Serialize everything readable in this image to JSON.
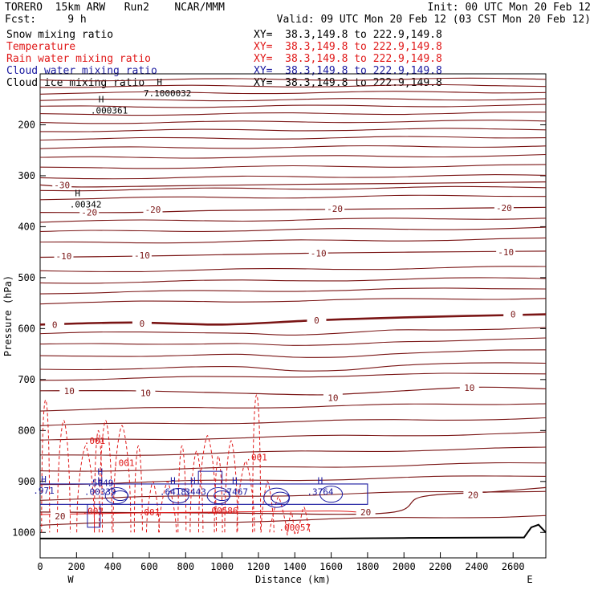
{
  "header": {
    "left_title": "TORERO  15km ARW   Run2    NCAR/MMM",
    "init": "Init: 00 UTC Mon 20 Feb 12",
    "fcst": "Fcst:     9 h",
    "valid": "Valid: 09 UTC Mon 20 Feb 12 (03 CST Mon 20 Feb 12)"
  },
  "colors": {
    "theta": "#7a1515",
    "rain": "#e01818",
    "cloud_water": "#1a1aa0",
    "black": "#000000"
  },
  "chart_data": {
    "type": "line",
    "subtype": "vertical cross-section (contour)",
    "legend": [
      {
        "name": "Snow mixing ratio",
        "xy": "XY=  38.3,149.8 to 222.9,149.8",
        "color": "#000000"
      },
      {
        "name": "Temperature",
        "xy": "XY=  38.3,149.8 to 222.9,149.8",
        "color": "#e01818"
      },
      {
        "name": "Rain water mixing ratio",
        "xy": "XY=  38.3,149.8 to 222.9,149.8",
        "color": "#e01818"
      },
      {
        "name": "Cloud water mixing ratio",
        "xy": "XY=  38.3,149.8 to 222.9,149.8",
        "color": "#1a1aa0"
      },
      {
        "name": "Cloud ice mixing ratio",
        "xy": "XY=  38.3,149.8 to 222.9,149.8",
        "color": "#000000"
      }
    ],
    "xlabel": "Distance (km)",
    "ylabel": "Pressure (hPa)",
    "xlim": [
      0,
      2780
    ],
    "ylim": [
      1050,
      100
    ],
    "x_ticks": [
      0,
      200,
      400,
      600,
      800,
      1000,
      1200,
      1400,
      1600,
      1800,
      2000,
      2200,
      2400,
      2600
    ],
    "y_ticks": [
      200,
      300,
      400,
      500,
      600,
      700,
      800,
      900,
      1000
    ],
    "end_labels": {
      "left": "W",
      "right": "E"
    },
    "temperature_contours": [
      {
        "label": "-30",
        "x": [
          0,
          200,
          700,
          1400,
          2000,
          2780
        ],
        "p": [
          318,
          322,
          320,
          317,
          315,
          312
        ]
      },
      {
        "label": "-20",
        "x": [
          0,
          500,
          1000,
          1600,
          2200,
          2780
        ],
        "p": [
          372,
          372,
          368,
          366,
          364,
          362
        ]
      },
      {
        "label": "-10",
        "x": [
          0,
          500,
          1000,
          1500,
          2000,
          2780
        ],
        "p": [
          460,
          458,
          455,
          452,
          450,
          448
        ]
      },
      {
        "label": "0",
        "x": [
          0,
          500,
          1000,
          1500,
          2000,
          2780
        ],
        "p": [
          592,
          588,
          592,
          584,
          578,
          572
        ]
      },
      {
        "label": "10",
        "x": [
          0,
          500,
          1000,
          1500,
          1700,
          2000,
          2400,
          2780
        ],
        "p": [
          722,
          722,
          726,
          730,
          728,
          722,
          715,
          718
        ]
      },
      {
        "label": "20",
        "x": [
          0,
          1000,
          1900,
          2100,
          2500,
          2780
        ],
        "p": [
          960,
          962,
          962,
          930,
          920,
          912
        ]
      }
    ],
    "temperature_labels": [
      {
        "label": "-30",
        "x": 120,
        "p": 318
      },
      {
        "label": "-20",
        "x": 270,
        "p": 372
      },
      {
        "label": "-20",
        "x": 620,
        "p": 366
      },
      {
        "label": "-20",
        "x": 1620,
        "p": 365
      },
      {
        "label": "-20",
        "x": 2550,
        "p": 363
      },
      {
        "label": "-10",
        "x": 130,
        "p": 458
      },
      {
        "label": "-10",
        "x": 560,
        "p": 456
      },
      {
        "label": "-10",
        "x": 1530,
        "p": 452
      },
      {
        "label": "-10",
        "x": 2560,
        "p": 450
      },
      {
        "label": "0",
        "x": 80,
        "p": 592
      },
      {
        "label": "0",
        "x": 560,
        "p": 590
      },
      {
        "label": "0",
        "x": 1520,
        "p": 584
      },
      {
        "label": "0",
        "x": 2600,
        "p": 572
      },
      {
        "label": "10",
        "x": 160,
        "p": 722
      },
      {
        "label": "10",
        "x": 580,
        "p": 726
      },
      {
        "label": "10",
        "x": 1610,
        "p": 736
      },
      {
        "label": "10",
        "x": 2360,
        "p": 716
      },
      {
        "label": "20",
        "x": 110,
        "p": 968
      },
      {
        "label": "20",
        "x": 2380,
        "p": 926
      },
      {
        "label": "20",
        "x": 1790,
        "p": 960
      }
    ],
    "rain_maxima_labels": [
      {
        "label": ".001",
        "x": 300,
        "p": 820
      },
      {
        "label": ".001",
        "x": 460,
        "p": 863
      },
      {
        "label": ".001",
        "x": 1190,
        "p": 852
      },
      {
        "label": ".001",
        "x": 600,
        "p": 960
      },
      {
        "label": ".001",
        "x": 290,
        "p": 958
      },
      {
        "label": ".00586",
        "x": 1000,
        "p": 957
      },
      {
        "label": ".00057",
        "x": 1400,
        "p": 990
      }
    ],
    "cloud_water_maxima_labels": [
      {
        "label": ".5849",
        "x": 330,
        "p": 903
      },
      {
        "label": ".6418",
        "x": 730,
        "p": 920
      },
      {
        "label": ".3443",
        "x": 840,
        "p": 920
      },
      {
        "label": ".7467",
        "x": 1070,
        "p": 920
      },
      {
        "label": ".3764",
        "x": 1540,
        "p": 920
      },
      {
        "label": ".971",
        "x": 20,
        "p": 918
      },
      {
        "label": ".00339",
        "x": 330,
        "p": 920
      }
    ],
    "ice_maxima_labels": [
      {
        "label": ".000361",
        "x": 380,
        "p": 172
      },
      {
        "label": ".00342",
        "x": 250,
        "p": 356
      },
      {
        "label": "7.1000032",
        "x": 700,
        "p": 138
      }
    ],
    "terrain": {
      "x": [
        0,
        500,
        1000,
        1600,
        2000,
        2660,
        2700,
        2740,
        2780
      ],
      "p": [
        1012,
        1012,
        1012,
        1012,
        1011,
        1010,
        990,
        985,
        1000
      ]
    }
  }
}
